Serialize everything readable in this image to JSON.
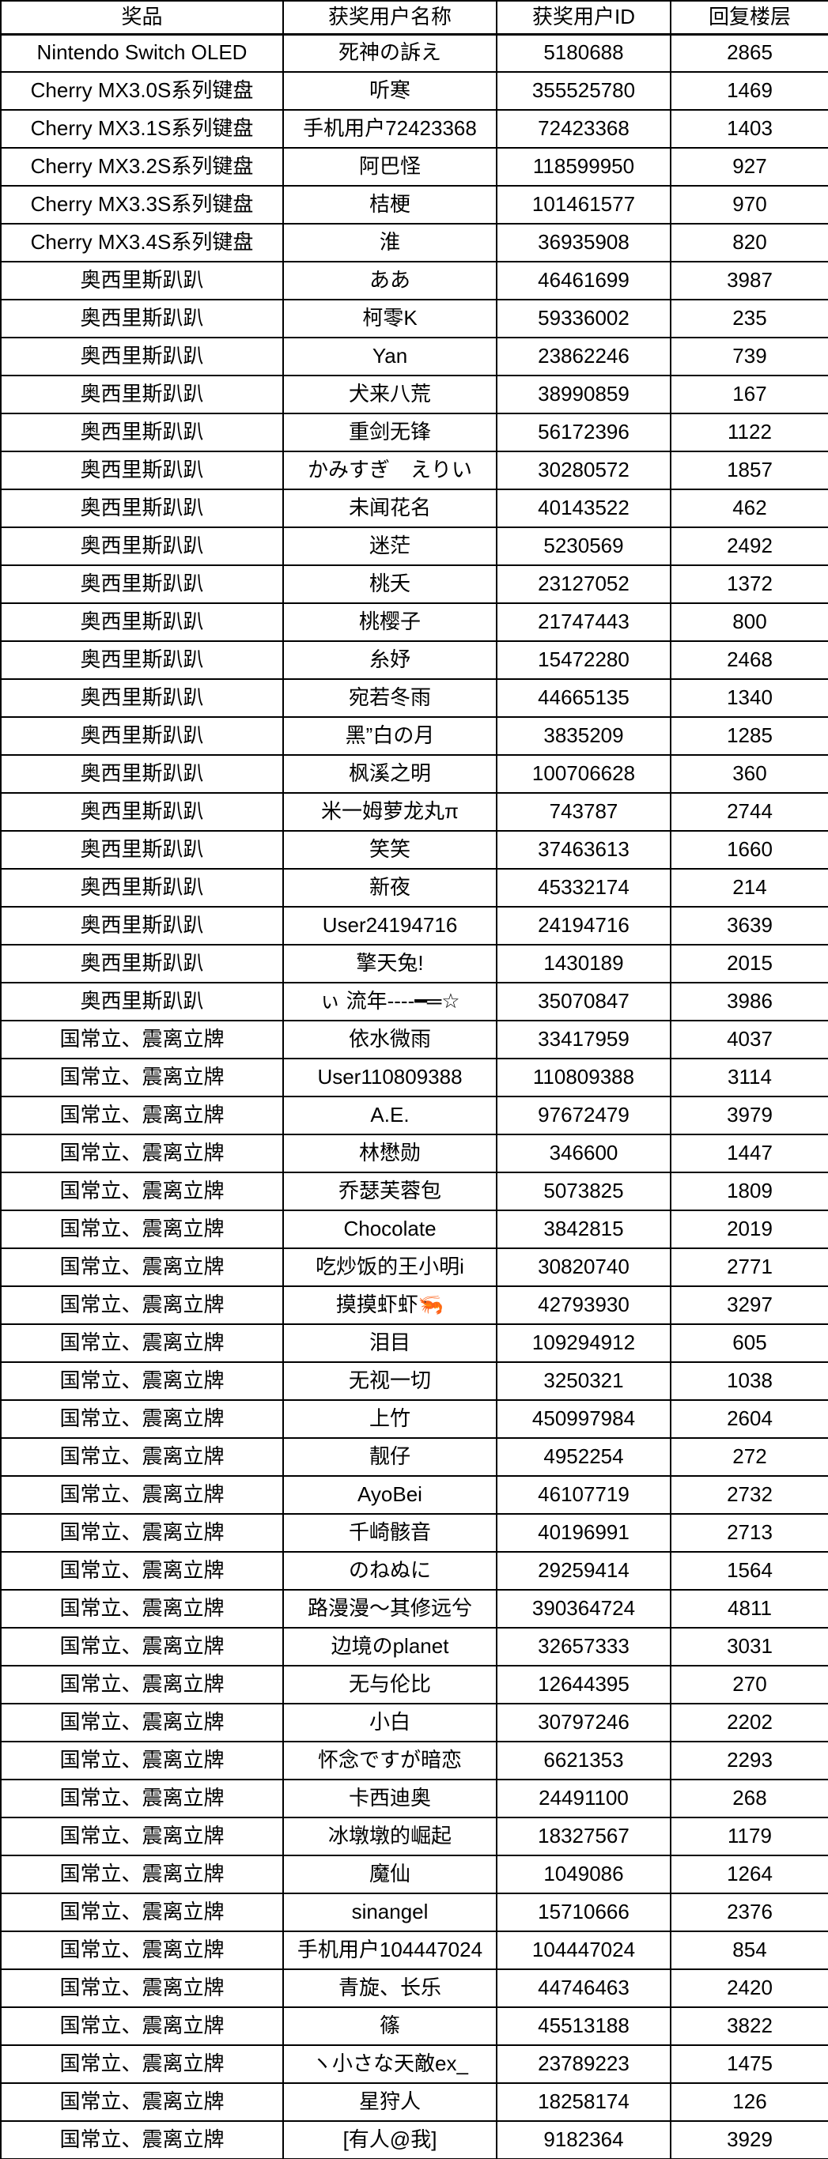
{
  "colors": {
    "background": "#ffffff",
    "border": "#000000",
    "text": "#000000"
  },
  "table": {
    "columns": [
      "奖品",
      "获奖用户名称",
      "获奖用户ID",
      "回复楼层"
    ],
    "rows": [
      {
        "prize": "Nintendo Switch OLED",
        "name": "死神の訴え",
        "id": "5180688",
        "floor": "2865"
      },
      {
        "prize": "Cherry MX3.0S系列键盘",
        "name": "听寒",
        "id": "355525780",
        "floor": "1469"
      },
      {
        "prize": "Cherry MX3.1S系列键盘",
        "name": "手机用户72423368",
        "id": "72423368",
        "floor": "1403"
      },
      {
        "prize": "Cherry MX3.2S系列键盘",
        "name": "阿巴怪",
        "id": "118599950",
        "floor": "927"
      },
      {
        "prize": "Cherry MX3.3S系列键盘",
        "name": "桔梗",
        "id": "101461577",
        "floor": "970"
      },
      {
        "prize": "Cherry MX3.4S系列键盘",
        "name": "淮",
        "id": "36935908",
        "floor": "820"
      },
      {
        "prize": "奥西里斯趴趴",
        "name": "ああ",
        "id": "46461699",
        "floor": "3987"
      },
      {
        "prize": "奥西里斯趴趴",
        "name": "柯零K",
        "id": "59336002",
        "floor": "235"
      },
      {
        "prize": "奥西里斯趴趴",
        "name": "Yan",
        "id": "23862246",
        "floor": "739"
      },
      {
        "prize": "奥西里斯趴趴",
        "name": "犬来八荒",
        "id": "38990859",
        "floor": "167"
      },
      {
        "prize": "奥西里斯趴趴",
        "name": "重剑无锋",
        "id": "56172396",
        "floor": "1122"
      },
      {
        "prize": "奥西里斯趴趴",
        "name": "かみすぎ　えりい",
        "id": "30280572",
        "floor": "1857"
      },
      {
        "prize": "奥西里斯趴趴",
        "name": "未闻花名",
        "id": "40143522",
        "floor": "462"
      },
      {
        "prize": "奥西里斯趴趴",
        "name": "迷茫",
        "id": "5230569",
        "floor": "2492"
      },
      {
        "prize": "奥西里斯趴趴",
        "name": "桃夭",
        "id": "23127052",
        "floor": "1372"
      },
      {
        "prize": "奥西里斯趴趴",
        "name": "桃樱子",
        "id": "21747443",
        "floor": "800"
      },
      {
        "prize": "奥西里斯趴趴",
        "name": "糸妤",
        "id": "15472280",
        "floor": "2468"
      },
      {
        "prize": "奥西里斯趴趴",
        "name": "宛若冬雨",
        "id": "44665135",
        "floor": "1340"
      },
      {
        "prize": "奥西里斯趴趴",
        "name": "黑”白の月",
        "id": "3835209",
        "floor": "1285"
      },
      {
        "prize": "奥西里斯趴趴",
        "name": "枫溪之明",
        "id": "100706628",
        "floor": "360"
      },
      {
        "prize": "奥西里斯趴趴",
        "name": "米一姆萝龙丸π",
        "id": "743787",
        "floor": "2744"
      },
      {
        "prize": "奥西里斯趴趴",
        "name": "笑笑",
        "id": "37463613",
        "floor": "1660"
      },
      {
        "prize": "奥西里斯趴趴",
        "name": "新夜",
        "id": "45332174",
        "floor": "214"
      },
      {
        "prize": "奥西里斯趴趴",
        "name": "User24194716",
        "id": "24194716",
        "floor": "3639"
      },
      {
        "prize": "奥西里斯趴趴",
        "name": "擎天兔!",
        "id": "1430189",
        "floor": "2015"
      },
      {
        "prize": "奥西里斯趴趴",
        "name": "ぃ 流年----━═☆",
        "id": "35070847",
        "floor": "3986"
      },
      {
        "prize": "国常立、震离立牌",
        "name": "依水微雨",
        "id": "33417959",
        "floor": "4037"
      },
      {
        "prize": "国常立、震离立牌",
        "name": "User110809388",
        "id": "110809388",
        "floor": "3114"
      },
      {
        "prize": "国常立、震离立牌",
        "name": "A.E.",
        "id": "97672479",
        "floor": "3979"
      },
      {
        "prize": "国常立、震离立牌",
        "name": "林懋勋",
        "id": "346600",
        "floor": "1447"
      },
      {
        "prize": "国常立、震离立牌",
        "name": "乔瑟芙蓉包",
        "id": "5073825",
        "floor": "1809"
      },
      {
        "prize": "国常立、震离立牌",
        "name": "Chocolate",
        "id": "3842815",
        "floor": "2019"
      },
      {
        "prize": "国常立、震离立牌",
        "name": "吃炒饭的王小明i",
        "id": "30820740",
        "floor": "2771"
      },
      {
        "prize": "国常立、震离立牌",
        "name": "摸摸虾虾🦐",
        "id": "42793930",
        "floor": "3297"
      },
      {
        "prize": "国常立、震离立牌",
        "name": "泪目",
        "id": "109294912",
        "floor": "605"
      },
      {
        "prize": "国常立、震离立牌",
        "name": "无视一切",
        "id": "3250321",
        "floor": "1038"
      },
      {
        "prize": "国常立、震离立牌",
        "name": "上竹",
        "id": "450997984",
        "floor": "2604"
      },
      {
        "prize": "国常立、震离立牌",
        "name": "靓仔",
        "id": "4952254",
        "floor": "272"
      },
      {
        "prize": "国常立、震离立牌",
        "name": "AyoBei",
        "id": "46107719",
        "floor": "2732"
      },
      {
        "prize": "国常立、震离立牌",
        "name": "千崎骸音",
        "id": "40196991",
        "floor": "2713"
      },
      {
        "prize": "国常立、震离立牌",
        "name": "のねぬに",
        "id": "29259414",
        "floor": "1564"
      },
      {
        "prize": "国常立、震离立牌",
        "name": "路漫漫～其修远兮",
        "id": "390364724",
        "floor": "4811"
      },
      {
        "prize": "国常立、震离立牌",
        "name": "边境のplanet",
        "id": "32657333",
        "floor": "3031"
      },
      {
        "prize": "国常立、震离立牌",
        "name": "无与伦比",
        "id": "12644395",
        "floor": "270"
      },
      {
        "prize": "国常立、震离立牌",
        "name": "小白",
        "id": "30797246",
        "floor": "2202"
      },
      {
        "prize": "国常立、震离立牌",
        "name": "怀念ですが暗恋",
        "id": "6621353",
        "floor": "2293"
      },
      {
        "prize": "国常立、震离立牌",
        "name": "卡西迪奥",
        "id": "24491100",
        "floor": "268"
      },
      {
        "prize": "国常立、震离立牌",
        "name": "冰墩墩的崛起",
        "id": "18327567",
        "floor": "1179"
      },
      {
        "prize": "国常立、震离立牌",
        "name": "魔仙",
        "id": "1049086",
        "floor": "1264"
      },
      {
        "prize": "国常立、震离立牌",
        "name": "sinangel",
        "id": "15710666",
        "floor": "2376"
      },
      {
        "prize": "国常立、震离立牌",
        "name": "手机用户104447024",
        "id": "104447024",
        "floor": "854"
      },
      {
        "prize": "国常立、震离立牌",
        "name": "青旋、长乐",
        "id": "44746463",
        "floor": "2420"
      },
      {
        "prize": "国常立、震离立牌",
        "name": "篠",
        "id": "45513188",
        "floor": "3822"
      },
      {
        "prize": "国常立、震离立牌",
        "name": "ヽ小さな天敵ex_",
        "id": "23789223",
        "floor": "1475"
      },
      {
        "prize": "国常立、震离立牌",
        "name": "星狩人",
        "id": "18258174",
        "floor": "126"
      },
      {
        "prize": "国常立、震离立牌",
        "name": "[有人@我]",
        "id": "9182364",
        "floor": "3929"
      }
    ]
  }
}
